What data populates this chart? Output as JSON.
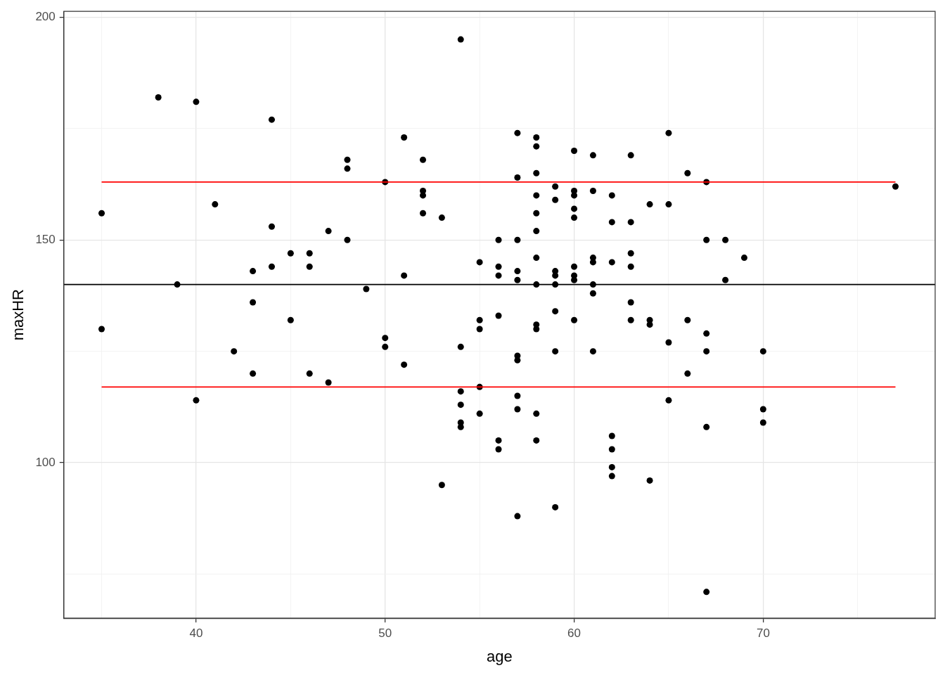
{
  "chart_data": {
    "type": "scatter",
    "xlabel": "age",
    "ylabel": "maxHR",
    "xlim": [
      33,
      79.1
    ],
    "xticks": [
      {
        "value": 35,
        "label": null
      },
      40,
      {
        "value": 45,
        "label": null
      },
      50,
      {
        "value": 55,
        "label": null
      },
      60,
      {
        "value": 65,
        "label": null
      },
      70,
      {
        "value": 75,
        "label": null
      }
    ],
    "ylim": [
      65.1,
      201.3
    ],
    "yticks": [
      {
        "value": 75,
        "label": null
      },
      100,
      {
        "value": 125,
        "label": null
      },
      150,
      {
        "value": 175,
        "label": null
      },
      200
    ],
    "grid": true,
    "legend": false,
    "ref_lines": [
      {
        "axis": "y",
        "value": 140,
        "color": "#000000"
      }
    ],
    "series": [
      {
        "color": "#000000",
        "marker": "circle",
        "x": [
          35,
          35,
          38,
          39,
          40,
          40,
          41,
          42,
          43,
          43,
          43,
          44,
          44,
          44,
          45,
          45,
          46,
          46,
          46,
          47,
          47,
          48,
          48,
          48,
          49,
          50,
          50,
          50,
          51,
          51,
          51,
          52,
          52,
          52,
          52,
          53,
          53,
          54,
          54,
          54,
          54,
          54,
          54,
          55,
          55,
          55,
          55,
          55,
          56,
          56,
          56,
          56,
          56,
          56,
          57,
          57,
          57,
          57,
          57,
          57,
          57,
          57,
          57,
          57,
          58,
          58,
          58,
          58,
          58,
          58,
          58,
          58,
          58,
          58,
          58,
          58,
          59,
          59,
          59,
          59,
          59,
          59,
          59,
          59,
          60,
          60,
          60,
          60,
          60,
          60,
          60,
          60,
          60,
          61,
          61,
          61,
          61,
          61,
          61,
          61,
          62,
          62,
          62,
          62,
          62,
          62,
          62,
          63,
          63,
          63,
          63,
          63,
          63,
          64,
          64,
          64,
          64,
          65,
          65,
          65,
          65,
          66,
          66,
          66,
          67,
          67,
          67,
          67,
          67,
          67,
          68,
          68,
          69,
          70,
          70,
          70,
          77
        ],
        "values": [
          156,
          130,
          182,
          140,
          181,
          114,
          158,
          125,
          143,
          136,
          120,
          177,
          153,
          144,
          147,
          132,
          147,
          144,
          120,
          152,
          118,
          168,
          166,
          150,
          139,
          163,
          128,
          126,
          173,
          142,
          122,
          168,
          161,
          160,
          156,
          155,
          95,
          195,
          126,
          116,
          113,
          109,
          108,
          145,
          132,
          130,
          117,
          111,
          150,
          144,
          142,
          133,
          105,
          103,
          174,
          164,
          150,
          143,
          141,
          124,
          123,
          115,
          112,
          88,
          173,
          171,
          165,
          160,
          156,
          152,
          146,
          140,
          131,
          130,
          111,
          105,
          162,
          159,
          143,
          142,
          140,
          134,
          125,
          90,
          170,
          161,
          160,
          157,
          155,
          144,
          142,
          141,
          132,
          169,
          161,
          146,
          145,
          140,
          138,
          125,
          160,
          154,
          145,
          106,
          103,
          99,
          97,
          169,
          154,
          147,
          144,
          136,
          132,
          158,
          132,
          131,
          96,
          174,
          158,
          127,
          114,
          165,
          132,
          120,
          163,
          150,
          129,
          125,
          108,
          71,
          150,
          141,
          146,
          125,
          112,
          109,
          162
        ]
      },
      {
        "type": "line",
        "marker": "none",
        "color": "#ff0000",
        "x": [
          35,
          77
        ],
        "values": [
          163,
          163
        ]
      },
      {
        "type": "line",
        "marker": "none",
        "color": "#ff0000",
        "x": [
          35,
          77
        ],
        "values": [
          117,
          117
        ]
      }
    ]
  }
}
